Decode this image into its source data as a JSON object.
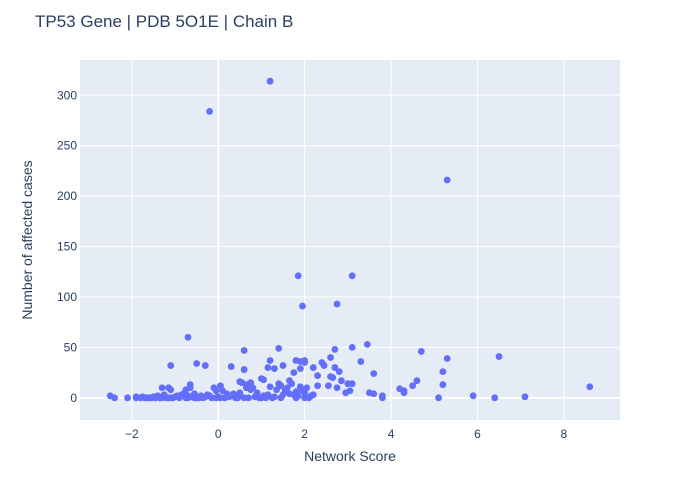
{
  "chart_data": {
    "type": "scatter",
    "title": "TP53 Gene | PDB 5O1E | Chain B",
    "xlabel": "Network Score",
    "ylabel": "Number of affected cases",
    "xlim": [
      -3.2,
      9.3
    ],
    "ylim": [
      -22,
      335
    ],
    "xticks": [
      -2,
      0,
      2,
      4,
      6,
      8
    ],
    "xtick_labels": [
      "−2",
      "0",
      "2",
      "4",
      "6",
      "8"
    ],
    "yticks": [
      0,
      50,
      100,
      150,
      200,
      250,
      300
    ],
    "ytick_labels": [
      "0",
      "50",
      "100",
      "150",
      "200",
      "250",
      "300"
    ],
    "grid": true,
    "marker_color": "#636efa",
    "plot_bgcolor": "#e5ecf6",
    "series": [
      {
        "x": [
          -2.5,
          -2.4,
          -2.1,
          -1.9,
          -1.9,
          -1.8,
          -1.75,
          -1.7,
          -1.65,
          -1.6,
          -1.55,
          -1.5,
          -1.45,
          -1.4,
          -1.35,
          -1.3,
          -1.3,
          -1.25,
          -1.2,
          -1.15,
          -1.15,
          -1.1,
          -1.1,
          -1.05,
          -1.0,
          -0.95,
          -0.9,
          -0.85,
          -0.8,
          -0.75,
          -0.75,
          -0.7,
          -0.7,
          -0.65,
          -0.65,
          -0.6,
          -0.55,
          -0.55,
          -0.5,
          -0.45,
          -0.4,
          -0.35,
          -0.3,
          -0.25,
          -0.2,
          -0.15,
          -0.1,
          -0.05,
          -0.05,
          0.0,
          0.05,
          0.05,
          0.1,
          0.15,
          0.2,
          0.25,
          0.3,
          0.35,
          0.4,
          0.45,
          0.5,
          0.5,
          0.55,
          0.6,
          0.65,
          0.65,
          0.7,
          0.75,
          0.8,
          0.85,
          0.9,
          0.95,
          1.0,
          1.05,
          1.1,
          1.15,
          1.2,
          1.25,
          1.3,
          1.35,
          1.4,
          1.45,
          1.5,
          1.55,
          1.6,
          1.65,
          1.7,
          1.75,
          1.8,
          1.8,
          1.85,
          1.9,
          1.9,
          1.95,
          2.0,
          2.0,
          2.05,
          2.1,
          2.15,
          2.2,
          2.3,
          2.45,
          2.55,
          2.65,
          2.75,
          2.85,
          2.95,
          3.05,
          3.1,
          3.5,
          3.6,
          3.8,
          3.8,
          4.2,
          4.3,
          4.5,
          4.6,
          5.1,
          5.2,
          5.2,
          5.9,
          6.4,
          7.1,
          8.6,
          -1.1,
          -1.3,
          -0.3,
          0.3,
          0.5,
          0.6,
          0.75,
          1.05,
          1.15,
          1.3,
          1.45,
          1.5,
          1.65,
          1.75,
          1.9,
          2.0,
          2.3,
          2.4,
          2.6,
          2.7,
          2.8,
          3.0,
          3.3,
          3.6,
          4.3,
          4.7,
          5.3,
          6.5,
          -0.2,
          1.2,
          5.3,
          -0.7,
          -0.5,
          0.6,
          1.0,
          1.2,
          1.4,
          1.8,
          1.9,
          2.0,
          2.2,
          2.6,
          2.7,
          3.1,
          3.45,
          1.85,
          1.95,
          2.75,
          3.1
        ],
        "y": [
          2,
          0,
          0,
          1,
          0,
          0,
          1,
          0,
          0,
          0,
          0,
          1,
          0,
          2,
          0,
          0,
          1,
          3,
          0,
          0,
          10,
          8,
          0,
          0,
          1,
          2,
          0,
          3,
          4,
          0,
          8,
          2,
          0,
          10,
          13,
          1,
          0,
          4,
          0,
          0,
          2,
          0,
          1,
          3,
          2,
          0,
          10,
          0,
          7,
          1,
          0,
          12,
          7,
          0,
          4,
          1,
          2,
          4,
          0,
          0,
          5,
          2,
          15,
          0,
          13,
          10,
          0,
          8,
          10,
          1,
          5,
          0,
          0,
          2,
          0,
          3,
          11,
          0,
          1,
          8,
          14,
          0,
          3,
          8,
          10,
          4,
          14,
          3,
          0,
          6,
          2,
          10,
          11,
          7,
          0,
          5,
          10,
          0,
          2,
          3,
          12,
          32,
          12,
          20,
          10,
          17,
          5,
          7,
          14,
          5,
          4,
          0,
          2,
          9,
          5,
          12,
          17,
          0,
          26,
          13,
          2,
          0,
          1,
          11,
          32,
          10,
          32,
          31,
          16,
          28,
          15,
          18,
          30,
          29,
          12,
          32,
          17,
          25,
          29,
          37,
          22,
          35,
          21,
          48,
          26,
          14,
          36,
          24,
          7,
          46,
          39,
          41,
          284,
          314,
          216,
          60,
          34,
          47,
          19,
          37,
          49,
          37,
          36,
          35,
          30,
          40,
          30,
          50,
          53,
          121,
          91,
          93,
          121
        ]
      }
    ]
  }
}
